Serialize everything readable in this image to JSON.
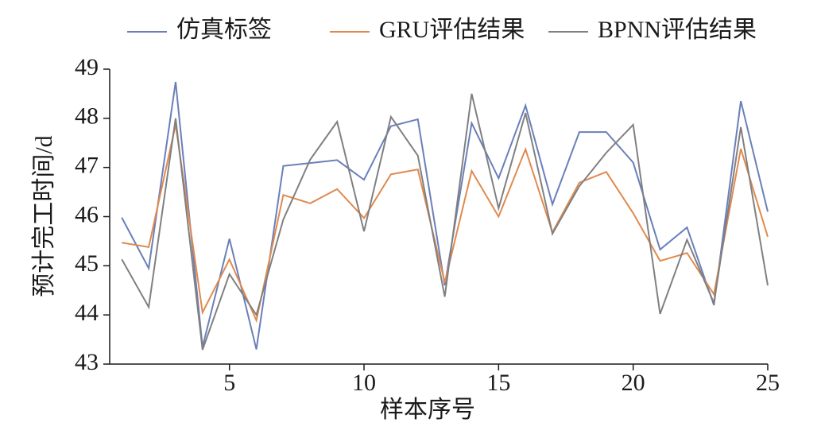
{
  "chart_data": {
    "type": "line",
    "x_label": "样本序号",
    "y_label": "预计完工时间/d",
    "x": [
      1,
      2,
      3,
      4,
      5,
      6,
      7,
      8,
      9,
      10,
      11,
      12,
      13,
      14,
      15,
      16,
      17,
      18,
      19,
      20,
      21,
      22,
      23,
      24,
      25
    ],
    "series": [
      {
        "name": "仿真标签",
        "color": "#6a7fba",
        "values": [
          45.98,
          44.95,
          48.74,
          43.35,
          45.55,
          43.3,
          47.03,
          47.09,
          47.15,
          46.75,
          47.84,
          47.98,
          44.6,
          47.9,
          46.78,
          48.26,
          46.25,
          47.72,
          47.72,
          47.1,
          45.33,
          45.78,
          44.2,
          48.35,
          46.1
        ]
      },
      {
        "name": "GRU评估结果",
        "color": "#e08a4f",
        "values": [
          45.47,
          45.38,
          47.87,
          44.05,
          45.13,
          43.89,
          46.44,
          46.27,
          46.56,
          45.97,
          46.86,
          46.96,
          44.66,
          46.93,
          46.0,
          47.37,
          45.68,
          46.69,
          46.91,
          46.07,
          45.1,
          45.26,
          44.42,
          47.38,
          45.59
        ]
      },
      {
        "name": "BPNN评估结果",
        "color": "#808080",
        "values": [
          45.13,
          44.16,
          48.0,
          43.29,
          44.83,
          44.0,
          45.94,
          47.16,
          47.93,
          45.7,
          48.03,
          47.24,
          44.37,
          48.5,
          46.17,
          48.11,
          45.65,
          46.62,
          47.3,
          47.87,
          44.02,
          45.53,
          44.24,
          47.82,
          44.6
        ]
      }
    ],
    "xlim": [
      0.55,
      25
    ],
    "xticks": [
      5,
      10,
      15,
      20,
      25
    ],
    "ylim": [
      43,
      49
    ],
    "yticks": [
      43,
      44,
      45,
      46,
      47,
      48,
      49
    ]
  }
}
